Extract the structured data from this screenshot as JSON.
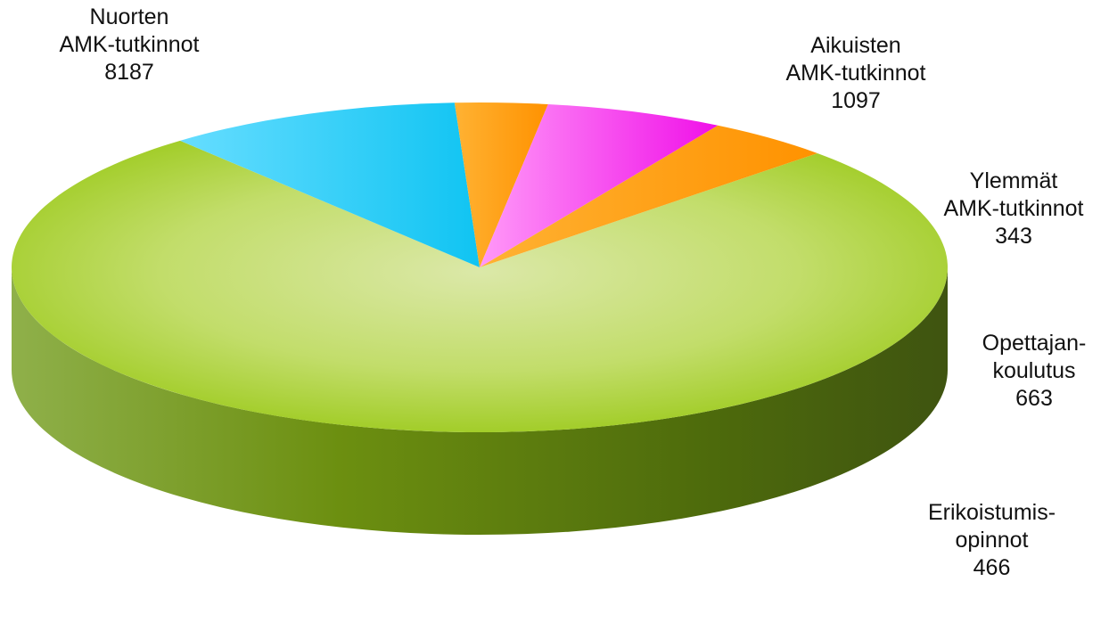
{
  "chart_data": {
    "type": "pie",
    "title": "",
    "slices": [
      {
        "label_lines": [
          "Nuorten",
          "AMK-tutkinnot"
        ],
        "value": 8187,
        "value_text": "8187",
        "color": "#9acd12"
      },
      {
        "label_lines": [
          "Aikuisten",
          "AMK-tutkinnot"
        ],
        "value": 1097,
        "value_text": "1097",
        "color": "#22ccf5"
      },
      {
        "label_lines": [
          "Ylemmät",
          "AMK-tutkinnot"
        ],
        "value": 343,
        "value_text": "343",
        "color": "#ff9900"
      },
      {
        "label_lines": [
          "Opettajan-",
          "koulutus"
        ],
        "value": 663,
        "value_text": "663",
        "color": "#ff22ee"
      },
      {
        "label_lines": [
          "Erikoistumis-",
          "opinnot"
        ],
        "value": 466,
        "value_text": "466",
        "color": "#ff9900"
      }
    ],
    "legend": "none",
    "style": "3d-exploded-labels-outside"
  }
}
